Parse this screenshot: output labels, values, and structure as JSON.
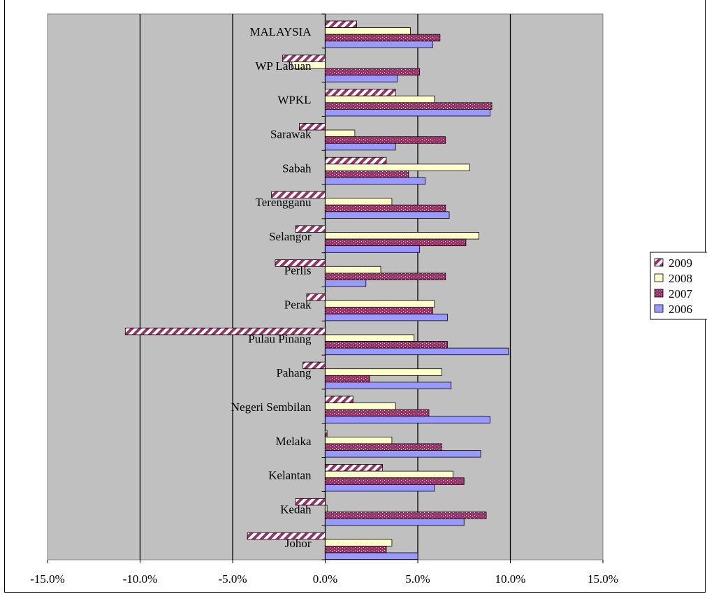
{
  "chart_data": {
    "type": "bar",
    "orientation": "horizontal",
    "title": "",
    "xlabel": "",
    "ylabel": "",
    "xlim": [
      -15,
      15
    ],
    "x_ticks": [
      "-15.0%",
      "-10.0%",
      "-5.0%",
      "0.0%",
      "5.0%",
      "10.0%",
      "15.0%"
    ],
    "x_tick_values": [
      -15,
      -10,
      -5,
      0,
      5,
      10,
      15
    ],
    "grid": "vertical",
    "legend_position": "right",
    "categories": [
      "Johor",
      "Kedah",
      "Kelantan",
      "Melaka",
      "Negeri Sembilan",
      "Pahang",
      "Pulau Pinang",
      "Perak",
      "Perlis",
      "Selangor",
      "Terengganu",
      "Sabah",
      "Sarawak",
      "WPKL",
      "WP Labuan",
      "MALAYSIA"
    ],
    "series": [
      {
        "name": "2009",
        "color": "#993366",
        "pattern": "diagonal-stripes",
        "values": [
          -4.2,
          -1.6,
          3.1,
          0.1,
          1.5,
          -1.2,
          -10.8,
          -1.0,
          -2.7,
          -1.6,
          -2.9,
          3.3,
          -1.4,
          3.8,
          -2.3,
          1.7
        ]
      },
      {
        "name": "2008",
        "color": "#ffffcc",
        "pattern": "solid",
        "values": [
          3.6,
          0.1,
          6.9,
          3.6,
          3.8,
          6.3,
          4.8,
          5.9,
          3.0,
          8.3,
          3.6,
          7.8,
          1.6,
          5.9,
          -1.8,
          4.6
        ]
      },
      {
        "name": "2007",
        "color": "#993366",
        "pattern": "dotted",
        "values": [
          3.3,
          8.7,
          7.5,
          6.3,
          5.6,
          2.4,
          6.6,
          5.8,
          6.5,
          7.6,
          6.5,
          4.5,
          6.5,
          9.0,
          5.1,
          6.2
        ]
      },
      {
        "name": "2006",
        "color": "#9999ff",
        "pattern": "solid",
        "values": [
          5.0,
          7.5,
          5.9,
          8.4,
          8.9,
          6.8,
          9.9,
          6.6,
          2.2,
          5.1,
          6.7,
          5.4,
          3.8,
          8.9,
          3.9,
          5.8
        ]
      }
    ]
  },
  "legend": {
    "items": [
      {
        "label": "2009",
        "series": 0
      },
      {
        "label": "2008",
        "series": 1
      },
      {
        "label": "2007",
        "series": 2
      },
      {
        "label": "2006",
        "series": 3
      }
    ]
  }
}
